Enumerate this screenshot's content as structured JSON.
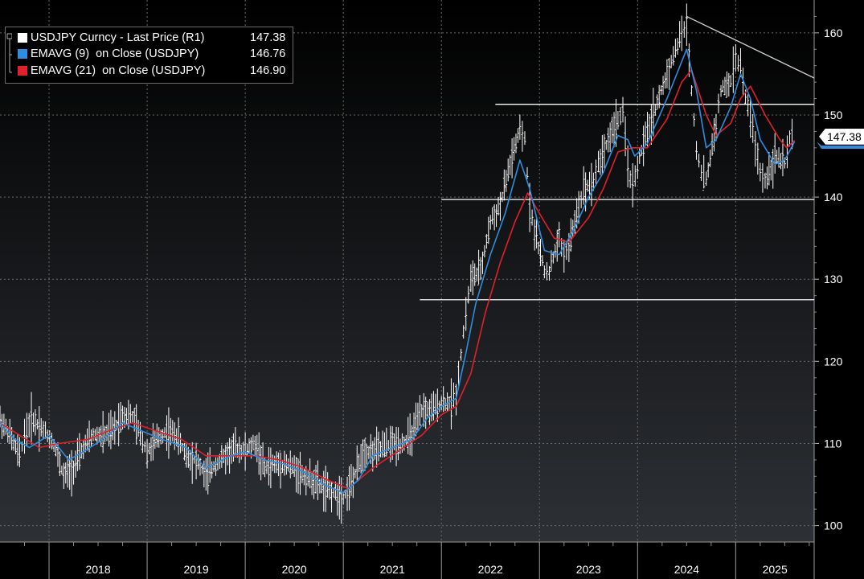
{
  "legend": {
    "items": [
      {
        "label": "USDJPY Curncy - Last Price (R1)",
        "value": "147.38",
        "color": "#ffffff"
      },
      {
        "label": "EMAVG (9)  on Close (USDJPY)",
        "value": "146.76",
        "color": "#2e8de0"
      },
      {
        "label": "EMAVG (21)  on Close (USDJPY)",
        "value": "146.90",
        "color": "#e0202c"
      }
    ]
  },
  "last_price_tag": "147.38",
  "chart_data": {
    "type": "line",
    "title": "",
    "xlabel": "",
    "ylabel": "",
    "x_ticks": [
      "2018",
      "2019",
      "2020",
      "2021",
      "2022",
      "2023",
      "2024",
      "2025"
    ],
    "y_ticks": [
      100,
      110,
      120,
      130,
      140,
      150,
      160
    ],
    "ylim": [
      98,
      164
    ],
    "xlim": [
      2017.5,
      2025.8
    ],
    "grid": true,
    "y_axis_side": "right",
    "series": [
      {
        "name": "USDJPY Curncy - Last Price (R1)",
        "color": "#ffffff",
        "points": [
          [
            2017.5,
            113
          ],
          [
            2017.6,
            111
          ],
          [
            2017.7,
            108.5
          ],
          [
            2017.75,
            111
          ],
          [
            2017.82,
            113
          ],
          [
            2017.92,
            112
          ],
          [
            2018.05,
            110
          ],
          [
            2018.15,
            106
          ],
          [
            2018.25,
            107
          ],
          [
            2018.35,
            109.5
          ],
          [
            2018.45,
            111
          ],
          [
            2018.55,
            111
          ],
          [
            2018.65,
            111.5
          ],
          [
            2018.75,
            113.5
          ],
          [
            2018.85,
            113.3
          ],
          [
            2018.93,
            111
          ],
          [
            2019.0,
            109
          ],
          [
            2019.1,
            110.5
          ],
          [
            2019.2,
            111.5
          ],
          [
            2019.3,
            111
          ],
          [
            2019.4,
            108.5
          ],
          [
            2019.5,
            108
          ],
          [
            2019.6,
            106
          ],
          [
            2019.7,
            107.5
          ],
          [
            2019.8,
            108.5
          ],
          [
            2019.9,
            109.5
          ],
          [
            2020.0,
            109
          ],
          [
            2020.1,
            110
          ],
          [
            2020.2,
            107
          ],
          [
            2020.3,
            107.5
          ],
          [
            2020.4,
            107.5
          ],
          [
            2020.5,
            107
          ],
          [
            2020.6,
            106
          ],
          [
            2020.7,
            105.5
          ],
          [
            2020.8,
            104.5
          ],
          [
            2020.9,
            104
          ],
          [
            2021.0,
            103.5
          ],
          [
            2021.1,
            105.5
          ],
          [
            2021.2,
            109
          ],
          [
            2021.3,
            109
          ],
          [
            2021.4,
            109.5
          ],
          [
            2021.5,
            110
          ],
          [
            2021.6,
            110
          ],
          [
            2021.7,
            111
          ],
          [
            2021.8,
            114
          ],
          [
            2021.9,
            114
          ],
          [
            2022.0,
            115
          ],
          [
            2022.1,
            115
          ],
          [
            2022.15,
            116
          ],
          [
            2022.2,
            121
          ],
          [
            2022.25,
            126
          ],
          [
            2022.3,
            130
          ],
          [
            2022.4,
            131
          ],
          [
            2022.5,
            137
          ],
          [
            2022.6,
            139
          ],
          [
            2022.7,
            144
          ],
          [
            2022.8,
            148
          ],
          [
            2022.85,
            147
          ],
          [
            2022.9,
            139
          ],
          [
            2022.95,
            136
          ],
          [
            2023.05,
            131
          ],
          [
            2023.1,
            131
          ],
          [
            2023.2,
            135
          ],
          [
            2023.25,
            133
          ],
          [
            2023.3,
            134
          ],
          [
            2023.4,
            139
          ],
          [
            2023.45,
            141
          ],
          [
            2023.55,
            142
          ],
          [
            2023.6,
            144
          ],
          [
            2023.7,
            147
          ],
          [
            2023.8,
            149.5
          ],
          [
            2023.85,
            150
          ],
          [
            2023.9,
            144
          ],
          [
            2023.95,
            141
          ],
          [
            2024.0,
            144
          ],
          [
            2024.1,
            148
          ],
          [
            2024.2,
            151.5
          ],
          [
            2024.3,
            155
          ],
          [
            2024.45,
            160
          ],
          [
            2024.5,
            161
          ],
          [
            2024.55,
            153
          ],
          [
            2024.6,
            146
          ],
          [
            2024.65,
            143
          ],
          [
            2024.7,
            142
          ],
          [
            2024.8,
            149
          ],
          [
            2024.85,
            153
          ],
          [
            2024.95,
            154
          ],
          [
            2025.0,
            157
          ],
          [
            2025.05,
            156
          ],
          [
            2025.1,
            152
          ],
          [
            2025.15,
            150
          ],
          [
            2025.2,
            146
          ],
          [
            2025.25,
            143
          ],
          [
            2025.3,
            142
          ],
          [
            2025.4,
            145
          ],
          [
            2025.5,
            144
          ],
          [
            2025.55,
            147
          ],
          [
            2025.6,
            147.38
          ]
        ]
      },
      {
        "name": "EMAVG (9)  on Close (USDJPY)",
        "color": "#2e8de0",
        "points": [
          [
            2017.5,
            112.5
          ],
          [
            2017.65,
            110.5
          ],
          [
            2017.8,
            109.5
          ],
          [
            2018.0,
            111
          ],
          [
            2018.2,
            108
          ],
          [
            2018.35,
            109
          ],
          [
            2018.55,
            110.5
          ],
          [
            2018.75,
            112.5
          ],
          [
            2018.95,
            111.5
          ],
          [
            2019.15,
            110.5
          ],
          [
            2019.4,
            109.5
          ],
          [
            2019.6,
            107
          ],
          [
            2019.85,
            108.5
          ],
          [
            2020.0,
            109
          ],
          [
            2020.2,
            108
          ],
          [
            2020.4,
            107.5
          ],
          [
            2020.6,
            106.5
          ],
          [
            2020.8,
            105
          ],
          [
            2021.0,
            104
          ],
          [
            2021.15,
            105.5
          ],
          [
            2021.3,
            108.5
          ],
          [
            2021.5,
            109.5
          ],
          [
            2021.7,
            110.5
          ],
          [
            2021.85,
            113
          ],
          [
            2022.0,
            114.5
          ],
          [
            2022.15,
            115.5
          ],
          [
            2022.25,
            121
          ],
          [
            2022.35,
            127
          ],
          [
            2022.5,
            133
          ],
          [
            2022.65,
            138
          ],
          [
            2022.8,
            144.5
          ],
          [
            2022.9,
            141
          ],
          [
            2023.05,
            133.5
          ],
          [
            2023.2,
            133
          ],
          [
            2023.35,
            136
          ],
          [
            2023.5,
            140
          ],
          [
            2023.65,
            143
          ],
          [
            2023.8,
            147.5
          ],
          [
            2023.9,
            147
          ],
          [
            2023.97,
            145
          ],
          [
            2024.1,
            146.5
          ],
          [
            2024.3,
            152
          ],
          [
            2024.5,
            158
          ],
          [
            2024.6,
            153
          ],
          [
            2024.7,
            146
          ],
          [
            2024.8,
            147
          ],
          [
            2024.95,
            151
          ],
          [
            2025.05,
            155
          ],
          [
            2025.15,
            152
          ],
          [
            2025.25,
            147
          ],
          [
            2025.4,
            144
          ],
          [
            2025.5,
            144.5
          ],
          [
            2025.6,
            146.76
          ]
        ]
      },
      {
        "name": "EMAVG (21)  on Close (USDJPY)",
        "color": "#e0202c",
        "points": [
          [
            2017.5,
            112.5
          ],
          [
            2017.7,
            111
          ],
          [
            2017.9,
            109.5
          ],
          [
            2018.1,
            110
          ],
          [
            2018.4,
            110.5
          ],
          [
            2018.6,
            111.5
          ],
          [
            2018.85,
            112.5
          ],
          [
            2019.1,
            111.5
          ],
          [
            2019.35,
            110.5
          ],
          [
            2019.6,
            108.5
          ],
          [
            2019.85,
            108.5
          ],
          [
            2020.1,
            108.5
          ],
          [
            2020.35,
            108
          ],
          [
            2020.6,
            107
          ],
          [
            2020.85,
            105.5
          ],
          [
            2021.05,
            104.5
          ],
          [
            2021.3,
            107
          ],
          [
            2021.55,
            109
          ],
          [
            2021.8,
            111
          ],
          [
            2022.0,
            113.5
          ],
          [
            2022.15,
            114.5
          ],
          [
            2022.3,
            118.5
          ],
          [
            2022.45,
            126
          ],
          [
            2022.6,
            132
          ],
          [
            2022.75,
            137
          ],
          [
            2022.88,
            140.5
          ],
          [
            2023.0,
            138
          ],
          [
            2023.15,
            135
          ],
          [
            2023.3,
            134.5
          ],
          [
            2023.5,
            137.5
          ],
          [
            2023.65,
            141
          ],
          [
            2023.8,
            145.5
          ],
          [
            2023.95,
            146
          ],
          [
            2024.1,
            146
          ],
          [
            2024.3,
            149.5
          ],
          [
            2024.45,
            154
          ],
          [
            2024.55,
            155.5
          ],
          [
            2024.7,
            150
          ],
          [
            2024.8,
            147.5
          ],
          [
            2024.95,
            149
          ],
          [
            2025.05,
            152
          ],
          [
            2025.15,
            153.5
          ],
          [
            2025.3,
            150
          ],
          [
            2025.45,
            147
          ],
          [
            2025.52,
            146
          ],
          [
            2025.6,
            146.9
          ]
        ]
      }
    ],
    "reference_lines": [
      {
        "from": [
          2022.55,
          151.3
        ],
        "to": [
          2025.8,
          151.3
        ],
        "color": "#ffffff"
      },
      {
        "from": [
          2022.0,
          139.7
        ],
        "to": [
          2025.8,
          139.7
        ],
        "color": "#ffffff"
      },
      {
        "from": [
          2021.78,
          127.5
        ],
        "to": [
          2025.8,
          127.5
        ],
        "color": "#ffffff"
      },
      {
        "from": [
          2024.5,
          162
        ],
        "to": [
          2025.8,
          154.5
        ],
        "color": "#cfcfcf"
      }
    ]
  }
}
